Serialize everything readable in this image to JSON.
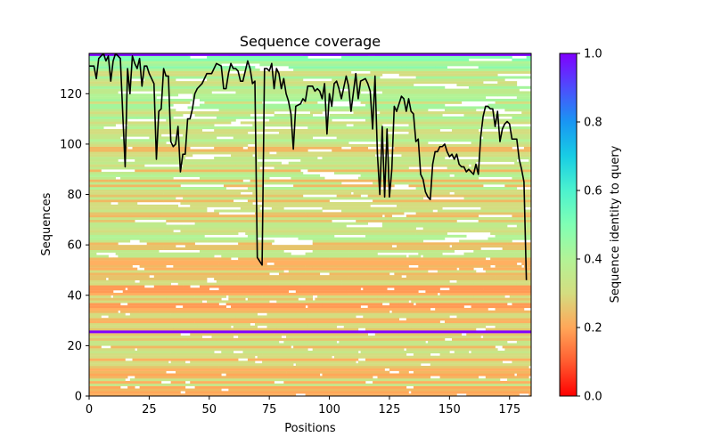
{
  "chart_data": {
    "type": "heatmap",
    "title": "Sequence coverage",
    "xlabel": "Positions",
    "ylabel": "Sequences",
    "xlim": [
      0,
      184
    ],
    "ylim": [
      0,
      136
    ],
    "x_ticks": [
      0,
      25,
      50,
      75,
      100,
      125,
      150,
      175
    ],
    "y_ticks": [
      0,
      20,
      40,
      60,
      80,
      100,
      120
    ],
    "colorbar": {
      "label": "Sequence identity to query",
      "range": [
        0.0,
        1.0
      ],
      "ticks": [
        "0.0",
        "0.2",
        "0.4",
        "0.6",
        "0.8",
        "1.0"
      ],
      "colormap": "rainbow_r"
    },
    "query_row_lines": [
      25.5,
      135.5
    ],
    "coverage_line": {
      "color": "#000000",
      "x": [
        0,
        2,
        3,
        4,
        6,
        7,
        8,
        9,
        10,
        11,
        13,
        14,
        15,
        16,
        17,
        18,
        19,
        20,
        21,
        22,
        23,
        24,
        25,
        26,
        27,
        28,
        29,
        30,
        31,
        32,
        33,
        34,
        35,
        36,
        37,
        38,
        39,
        40,
        41,
        42,
        43,
        44,
        45,
        47,
        49,
        51,
        53,
        55,
        56,
        57,
        58,
        59,
        60,
        61,
        62,
        63,
        64,
        66,
        67,
        68,
        69,
        70,
        72,
        73,
        74,
        75,
        76,
        77,
        78,
        79,
        80,
        81,
        82,
        83,
        84,
        85,
        86,
        88,
        89,
        90,
        91,
        93,
        94,
        95,
        96,
        97,
        98,
        99,
        100,
        101,
        102,
        103,
        104,
        105,
        107,
        108,
        109,
        111,
        112,
        113,
        115,
        116,
        117,
        118,
        119,
        120,
        121,
        122,
        123,
        124,
        125,
        126,
        127,
        128,
        129,
        130,
        131,
        132,
        133,
        134,
        135,
        136,
        137,
        138,
        139,
        140,
        141,
        142,
        143,
        144,
        145,
        146,
        147,
        148,
        149,
        150,
        151,
        152,
        153,
        154,
        155,
        156,
        157,
        158,
        159,
        160,
        161,
        162,
        163,
        164,
        165,
        166,
        167,
        168,
        169,
        170,
        171,
        172,
        173,
        174,
        175,
        176,
        177,
        178,
        179,
        180,
        181,
        182,
        183,
        184
      ],
      "y": [
        131,
        131,
        126,
        134,
        136,
        133,
        135,
        125,
        133,
        136,
        134,
        112,
        91,
        130,
        120,
        135,
        132,
        130,
        134,
        123,
        131,
        131,
        128,
        126,
        124,
        94,
        113,
        114,
        130,
        127,
        127,
        101,
        99,
        100,
        107,
        89,
        96,
        96,
        110,
        110,
        114,
        120,
        122,
        124,
        128,
        128,
        132,
        131,
        122,
        122,
        128,
        132,
        130,
        130,
        129,
        125,
        125,
        133,
        130,
        124,
        125,
        55,
        52,
        130,
        130,
        129,
        132,
        122,
        130,
        128,
        122,
        126,
        120,
        117,
        112,
        98,
        115,
        116,
        118,
        117,
        123,
        123,
        121,
        122,
        121,
        118,
        124,
        104,
        120,
        115,
        124,
        125,
        122,
        118,
        127,
        123,
        113,
        128,
        118,
        125,
        126,
        124,
        121,
        106,
        127,
        96,
        80,
        107,
        79,
        106,
        79,
        90,
        115,
        113,
        116,
        119,
        118,
        113,
        118,
        113,
        112,
        101,
        102,
        88,
        86,
        81,
        79,
        78,
        92,
        97,
        97,
        99,
        99,
        100,
        97,
        95,
        96,
        94,
        96,
        92,
        91,
        91,
        89,
        90,
        89,
        88,
        92,
        88,
        103,
        111,
        115,
        115,
        114,
        114,
        107,
        113,
        101,
        106,
        108,
        109,
        108,
        102,
        102,
        102,
        94,
        90,
        85,
        46
      ]
    }
  }
}
